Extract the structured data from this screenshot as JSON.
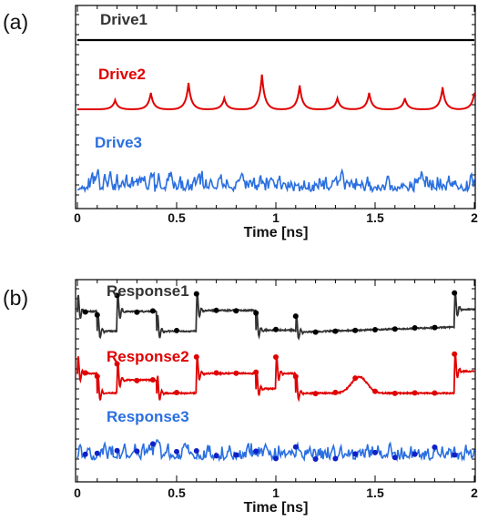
{
  "chart_data": [
    {
      "type": "line",
      "panel_label": "(a)",
      "xlabel": "Time [ns]",
      "ylabel": "",
      "xlim": [
        0,
        2
      ],
      "xticks": [
        0,
        0.5,
        1,
        1.5,
        2
      ],
      "xtick_labels": [
        "0",
        "0.5",
        "1",
        "1.5",
        "2"
      ],
      "grid": false,
      "series": [
        {
          "name": "Drive1",
          "color": "#000000",
          "kind": "constant"
        },
        {
          "name": "Drive2",
          "color": "#e00000",
          "kind": "periodic_pulses",
          "peak_times": [
            0.19,
            0.37,
            0.56,
            0.74,
            0.93,
            1.12,
            1.31,
            1.47,
            1.65,
            1.84,
            2.0
          ],
          "peak_heights": [
            0.25,
            0.45,
            0.72,
            0.3,
            0.95,
            0.65,
            0.3,
            0.45,
            0.3,
            0.6,
            0.45
          ]
        },
        {
          "name": "Drive3",
          "color": "#2a6fe0",
          "kind": "chaotic"
        }
      ]
    },
    {
      "type": "line",
      "panel_label": "(b)",
      "xlabel": "Time [ns]",
      "ylabel": "",
      "xlim": [
        0,
        2
      ],
      "xticks": [
        0,
        0.5,
        1,
        1.5,
        2
      ],
      "xtick_labels": [
        "0",
        "0.5",
        "1",
        "1.5",
        "2"
      ],
      "grid": false,
      "series": [
        {
          "name": "Response1",
          "color": "#333333",
          "marker_color": "#000000"
        },
        {
          "name": "Response2",
          "color": "#e00000",
          "marker_color": "#e00000"
        },
        {
          "name": "Response3",
          "color": "#2a6fe0",
          "marker_color": "#1020c8"
        }
      ],
      "markers": [
        0.04,
        0.1,
        0.2,
        0.3,
        0.38,
        0.5,
        0.6,
        0.7,
        0.8,
        0.9,
        1.0,
        1.1,
        1.2,
        1.3,
        1.4,
        1.5,
        1.6,
        1.7,
        1.8,
        1.9
      ]
    }
  ]
}
